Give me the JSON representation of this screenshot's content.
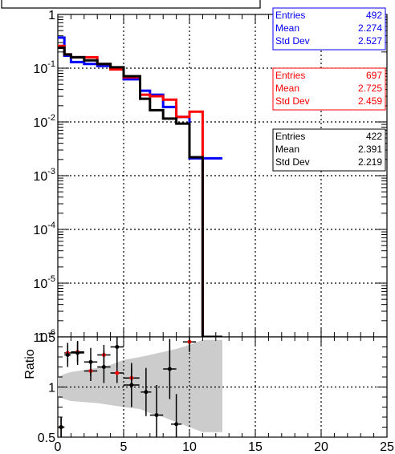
{
  "chart_data": [
    {
      "type": "histogram",
      "title": "",
      "xlim": [
        0,
        25
      ],
      "ylim": [
        1e-06,
        1
      ],
      "yscale": "log",
      "grid": true,
      "x_tick_labels": [
        "0",
        "5",
        "10",
        "15",
        "20",
        "25"
      ],
      "y_tick_labels": [
        {
          "base": "10",
          "exp": "-6"
        },
        {
          "base": "10",
          "exp": "-5"
        },
        {
          "base": "10",
          "exp": "-4"
        },
        {
          "base": "10",
          "exp": "-3"
        },
        {
          "base": "10",
          "exp": "-2"
        },
        {
          "base": "10",
          "exp": "-1"
        },
        {
          "base": "1",
          "exp": ""
        }
      ],
      "bin_edges": [
        0,
        0.5,
        1,
        2,
        3,
        4,
        5,
        6.25,
        7,
        8,
        9,
        10,
        11,
        12.5
      ],
      "series": [
        {
          "color": "#0000ff",
          "values": [
            0.37,
            0.17,
            0.13,
            0.12,
            0.11,
            0.1,
            0.062,
            0.038,
            0.032,
            0.019,
            0.0124,
            0.0021,
            0.0021
          ]
        },
        {
          "color": "#ff0000",
          "values": [
            0.26,
            0.18,
            0.16,
            0.16,
            0.12,
            0.095,
            0.068,
            0.032,
            0.03,
            0.026,
            0.0124,
            0.0155,
            1e-06
          ]
        },
        {
          "color": "#000000",
          "values": [
            0.24,
            0.18,
            0.16,
            0.14,
            0.12,
            0.104,
            0.071,
            0.027,
            0.0165,
            0.0115,
            0.0093,
            0.0022,
            1e-06
          ]
        }
      ],
      "stat_boxes": [
        {
          "color": "#0000ff",
          "rows": [
            [
              "Entries",
              "492"
            ],
            [
              "Mean",
              "2.274"
            ],
            [
              "Std Dev",
              "2.527"
            ]
          ]
        },
        {
          "color": "#ff0000",
          "rows": [
            [
              "Entries",
              "697"
            ],
            [
              "Mean",
              "2.725"
            ],
            [
              "Std Dev",
              "2.459"
            ]
          ]
        },
        {
          "color": "#000000",
          "rows": [
            [
              "Entries",
              "422"
            ],
            [
              "Mean",
              "2.391"
            ],
            [
              "Std Dev",
              "2.219"
            ]
          ]
        }
      ]
    },
    {
      "type": "ratio",
      "ylabel": "Ratio",
      "xlim": [
        0,
        25
      ],
      "ylim": [
        0.5,
        1.5
      ],
      "grid": true,
      "x_tick_labels": [
        "0",
        "5",
        "10",
        "15",
        "20",
        "25"
      ],
      "y_tick_labels": [
        "0.5",
        "1",
        "1.5"
      ],
      "band": {
        "color": "#cccccc",
        "x": [
          0,
          0.5,
          1,
          2,
          3,
          4,
          5,
          6.25,
          7,
          8,
          9,
          10,
          11,
          12.5
        ],
        "upper": [
          1.1,
          1.13,
          1.15,
          1.17,
          1.19,
          1.22,
          1.27,
          1.3,
          1.32,
          1.35,
          1.38,
          1.42,
          1.47,
          1.47
        ],
        "lower": [
          0.9,
          0.88,
          0.86,
          0.85,
          0.84,
          0.82,
          0.8,
          0.78,
          0.74,
          0.7,
          0.65,
          0.6,
          0.55,
          0.55
        ]
      },
      "series": [
        {
          "color": "#ff0000",
          "points": [
            {
              "x": 0.25,
              "y": 0.6,
              "ex": 0.25,
              "ey": 0.1
            },
            {
              "x": 0.75,
              "y": 1.34,
              "ex": 0.25,
              "ey": 0.1
            },
            {
              "x": 1.5,
              "y": 1.35,
              "ex": 0.5,
              "ey": 0.1
            },
            {
              "x": 2.5,
              "y": 1.16,
              "ex": 0.5,
              "ey": 0.1
            },
            {
              "x": 3.5,
              "y": 1.32,
              "ex": 0.5,
              "ey": 0.1
            },
            {
              "x": 4.5,
              "y": 1.14,
              "ex": 0.5,
              "ey": 0.1
            },
            {
              "x": 5.6,
              "y": 1.09,
              "ex": 0.6,
              "ey": 0.1
            },
            {
              "x": 10.0,
              "y": 1.45,
              "ex": 0.5,
              "ey": 0.1
            }
          ]
        },
        {
          "color": "#000000",
          "points": [
            {
              "x": 0.25,
              "y": 0.6,
              "ex": 0.25,
              "ey": 0.1
            },
            {
              "x": 0.75,
              "y": 1.32,
              "ex": 0.25,
              "ey": 0.12
            },
            {
              "x": 1.5,
              "y": 1.34,
              "ex": 0.5,
              "ey": 0.12
            },
            {
              "x": 2.5,
              "y": 1.25,
              "ex": 0.5,
              "ey": 0.14
            },
            {
              "x": 3.5,
              "y": 1.2,
              "ex": 0.5,
              "ey": 0.16
            },
            {
              "x": 4.5,
              "y": 1.4,
              "ex": 0.5,
              "ey": 0.2
            },
            {
              "x": 5.6,
              "y": 1.02,
              "ex": 0.6,
              "ey": 0.22
            },
            {
              "x": 6.7,
              "y": 0.95,
              "ex": 0.4,
              "ey": 0.24
            },
            {
              "x": 7.5,
              "y": 0.72,
              "ex": 0.5,
              "ey": 0.3
            },
            {
              "x": 8.5,
              "y": 1.18,
              "ex": 0.5,
              "ey": 0.3
            },
            {
              "x": 9.0,
              "y": 0.63,
              "ex": 0.4,
              "ey": 0.3
            }
          ]
        }
      ]
    }
  ]
}
